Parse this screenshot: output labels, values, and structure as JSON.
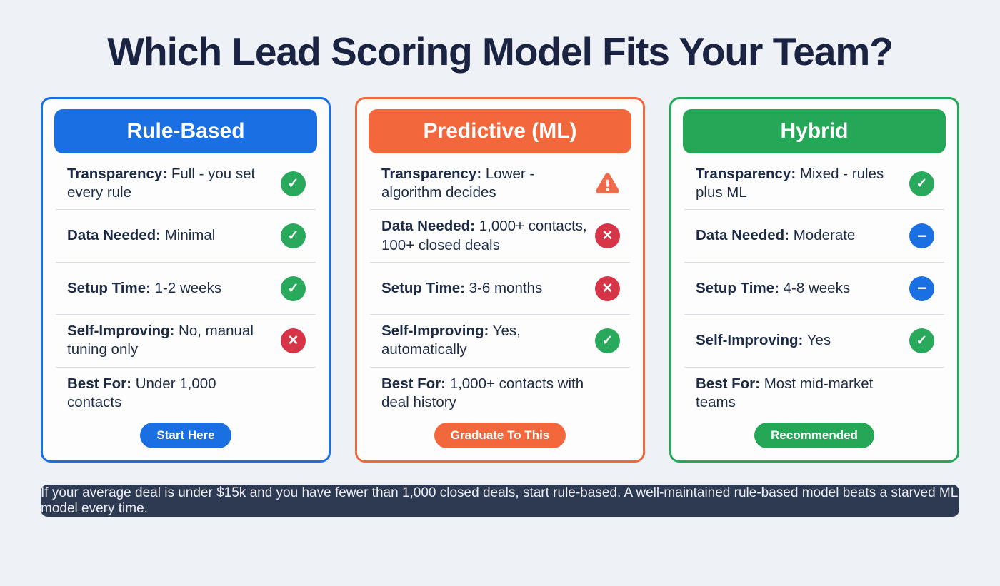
{
  "page": {
    "title": "Which Lead Scoring Model Fits Your Team?",
    "footer_note": "If your average deal is under $15k and you have fewer than 1,000 closed deals, start rule-based. A well-maintained rule-based model beats a starved ML model every time."
  },
  "colors": {
    "page_background": "#eef1f6",
    "title_text": "#1a2342",
    "card_background": "#fdfdfe",
    "body_text": "#1d2b45",
    "divider": "#d9dde4",
    "blue_accent": "#1a6fe3",
    "orange_accent": "#f2683c",
    "green_accent": "#24a857",
    "check_green": "#29a95c",
    "x_red": "#d83448",
    "minus_blue": "#1a6fe3",
    "warning_orange": "#ee6a4a",
    "footer_background": "#2d3a52",
    "footer_text": "#eceef4"
  },
  "cards": [
    {
      "title": "Rule-Based",
      "accent": "#1a6fe3",
      "badge": "Start Here",
      "rows": [
        {
          "label": "Transparency:",
          "value": "Full - you set every rule",
          "icon": "check-circle"
        },
        {
          "label": "Data Needed:",
          "value": "Minimal",
          "icon": "check-circle"
        },
        {
          "label": "Setup Time:",
          "value": "1-2 weeks",
          "icon": "check-circle"
        },
        {
          "label": "Self-Improving:",
          "value": "No, manual tuning only",
          "icon": "x-circle"
        },
        {
          "label": "Best For:",
          "value": "Under 1,000 contacts",
          "icon": "none"
        }
      ]
    },
    {
      "title": "Predictive (ML)",
      "accent": "#f2683c",
      "badge": "Graduate To This",
      "rows": [
        {
          "label": "Transparency:",
          "value": "Lower - algorithm decides",
          "icon": "warning-triangle"
        },
        {
          "label": "Data Needed:",
          "value": "1,000+ contacts, 100+ closed deals",
          "icon": "x-circle"
        },
        {
          "label": "Setup Time:",
          "value": "3-6 months",
          "icon": "x-circle"
        },
        {
          "label": "Self-Improving:",
          "value": "Yes, automatically",
          "icon": "check-circle"
        },
        {
          "label": "Best For:",
          "value": "1,000+ contacts with deal history",
          "icon": "none"
        }
      ]
    },
    {
      "title": "Hybrid",
      "accent": "#24a857",
      "badge": "Recommended",
      "rows": [
        {
          "label": "Transparency:",
          "value": "Mixed - rules plus ML",
          "icon": "check-circle"
        },
        {
          "label": "Data Needed:",
          "value": "Moderate",
          "icon": "minus-circle"
        },
        {
          "label": "Setup Time:",
          "value": "4-8 weeks",
          "icon": "minus-circle"
        },
        {
          "label": "Self-Improving:",
          "value": "Yes",
          "icon": "check-circle"
        },
        {
          "label": "Best For:",
          "value": "Most mid-market teams",
          "icon": "none"
        }
      ]
    }
  ]
}
